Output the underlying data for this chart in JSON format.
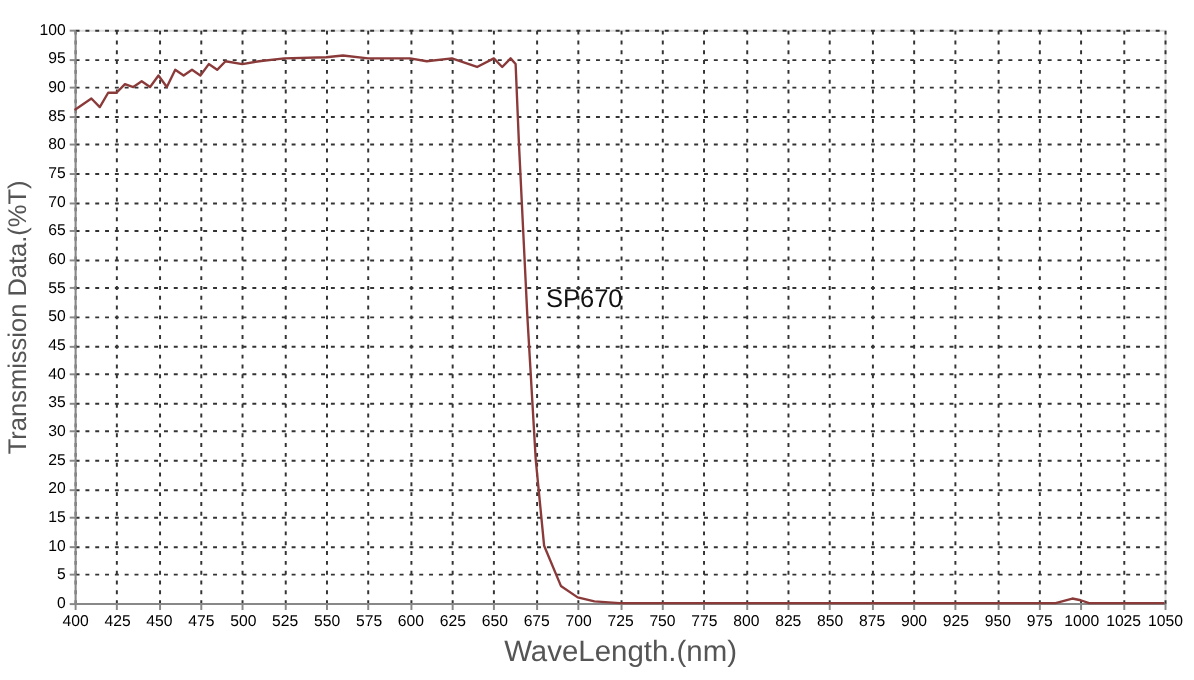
{
  "chart_data": {
    "type": "line",
    "xlabel": "WaveLength.(nm)",
    "ylabel": "Transmission Data.(%T)",
    "x": [
      400,
      405,
      410,
      415,
      420,
      425,
      430,
      435,
      440,
      445,
      450,
      455,
      460,
      465,
      470,
      475,
      480,
      485,
      490,
      500,
      510,
      525,
      550,
      560,
      575,
      600,
      610,
      625,
      640,
      650,
      655,
      660,
      663,
      665,
      670,
      675,
      680,
      690,
      700,
      710,
      725,
      800,
      950,
      985,
      995,
      1000,
      1005,
      1050
    ],
    "series": [
      {
        "color": "#8b3a3a",
        "values": [
          86,
          87,
          88,
          86.5,
          89,
          89,
          90.5,
          90,
          91,
          90,
          92,
          90,
          93,
          92,
          93,
          92,
          94,
          93,
          94.5,
          94,
          94.5,
          95,
          95.2,
          95.5,
          95,
          95,
          94.5,
          95,
          93.5,
          95,
          93.5,
          95,
          94,
          80,
          50,
          25,
          10,
          3,
          1,
          0.3,
          0,
          0,
          0,
          0,
          0.8,
          0.5,
          0,
          0
        ]
      }
    ],
    "annotations": [
      "SP670"
    ],
    "xlim": [
      400,
      1050
    ],
    "xticks": [
      400,
      425,
      450,
      475,
      500,
      525,
      550,
      575,
      600,
      625,
      650,
      675,
      700,
      725,
      750,
      775,
      800,
      825,
      850,
      875,
      900,
      925,
      950,
      975,
      1000,
      1025,
      1050
    ],
    "ylim": [
      0,
      100
    ],
    "yticks": [
      0,
      5,
      10,
      15,
      20,
      25,
      30,
      35,
      40,
      45,
      50,
      55,
      60,
      65,
      70,
      75,
      80,
      85,
      90,
      95,
      100
    ],
    "grid": true,
    "marker": "none",
    "line_style": "solid"
  }
}
